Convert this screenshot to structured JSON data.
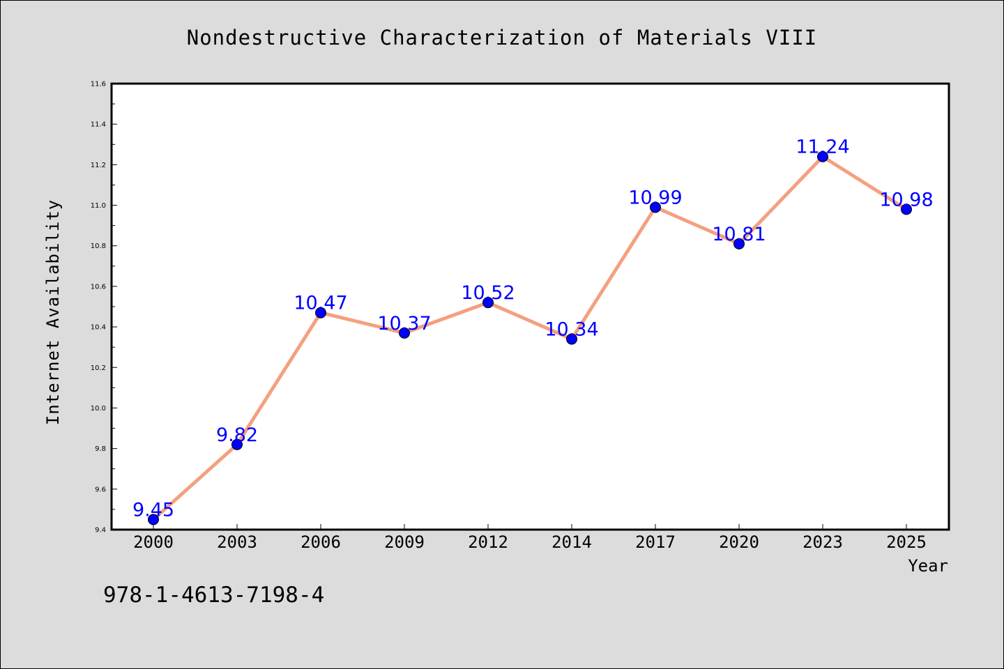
{
  "chart_data": {
    "type": "line",
    "title": "Nondestructive Characterization of Materials VIII",
    "xlabel": "Year",
    "ylabel": "Internet Availability",
    "categories": [
      "2000",
      "2003",
      "2006",
      "2009",
      "2012",
      "2014",
      "2017",
      "2020",
      "2023",
      "2025"
    ],
    "values": [
      9.45,
      9.82,
      10.47,
      10.37,
      10.52,
      10.34,
      10.99,
      10.81,
      11.24,
      10.98
    ],
    "data_labels": [
      "9.45",
      "9.82",
      "10.47",
      "10.37",
      "10.52",
      "10.34",
      "10.99",
      "10.81",
      "11.24",
      "10.98"
    ],
    "ylim": [
      9.4,
      11.6
    ],
    "yticks": [
      "9.4",
      "9.6",
      "9.8",
      "10.0",
      "10.2",
      "10.4",
      "10.6",
      "10.8",
      "11.0",
      "11.2",
      "11.4",
      "11.6"
    ],
    "ytick_values": [
      9.4,
      9.6,
      9.8,
      10.0,
      10.2,
      10.4,
      10.6,
      10.8,
      11.0,
      11.2,
      11.4,
      11.6
    ],
    "grid": false,
    "line_color": "#f4a07f",
    "marker_color": "#0000ff",
    "label_color": "#0000ff"
  },
  "footer": {
    "isbn": "978-1-4613-7198-4"
  }
}
